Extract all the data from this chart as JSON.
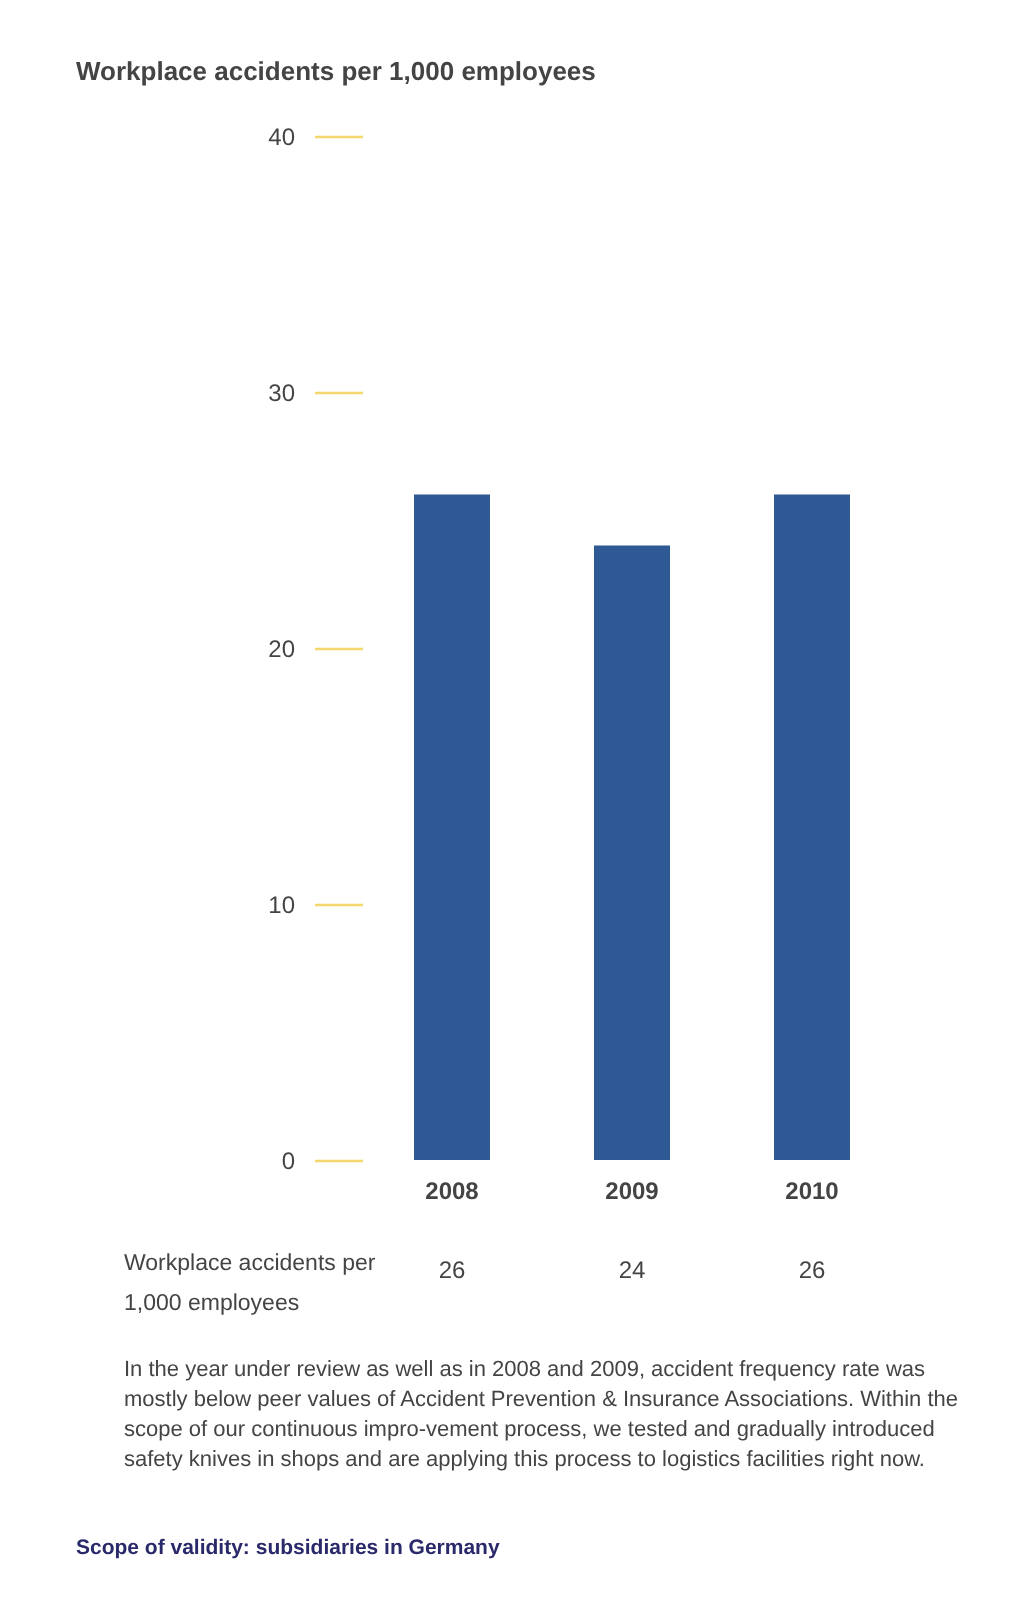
{
  "chart_data": {
    "type": "bar",
    "title": "Workplace accidents per 1,000 employees",
    "categories": [
      "2008",
      "2009",
      "2010"
    ],
    "values": [
      26,
      24,
      26
    ],
    "color": "#2e5994",
    "ylim": [
      0,
      40
    ],
    "yticks": [
      0,
      10,
      20,
      30,
      40
    ],
    "grid": false,
    "data_labels": true,
    "annotations": [
      "Workplace accidents per 1,000 employees",
      "In the year under review as well as in 2008 and 2009, accident frequency rate was mostly below peer values of Accident Prevention & Insurance Associations. Within the scope of our continuous impro-vement process, we tested and gradually introduced safety knives in shops and are applying this process to logistics facilities right now.",
      "Scope of validity: subsidiaries in Germany"
    ]
  }
}
